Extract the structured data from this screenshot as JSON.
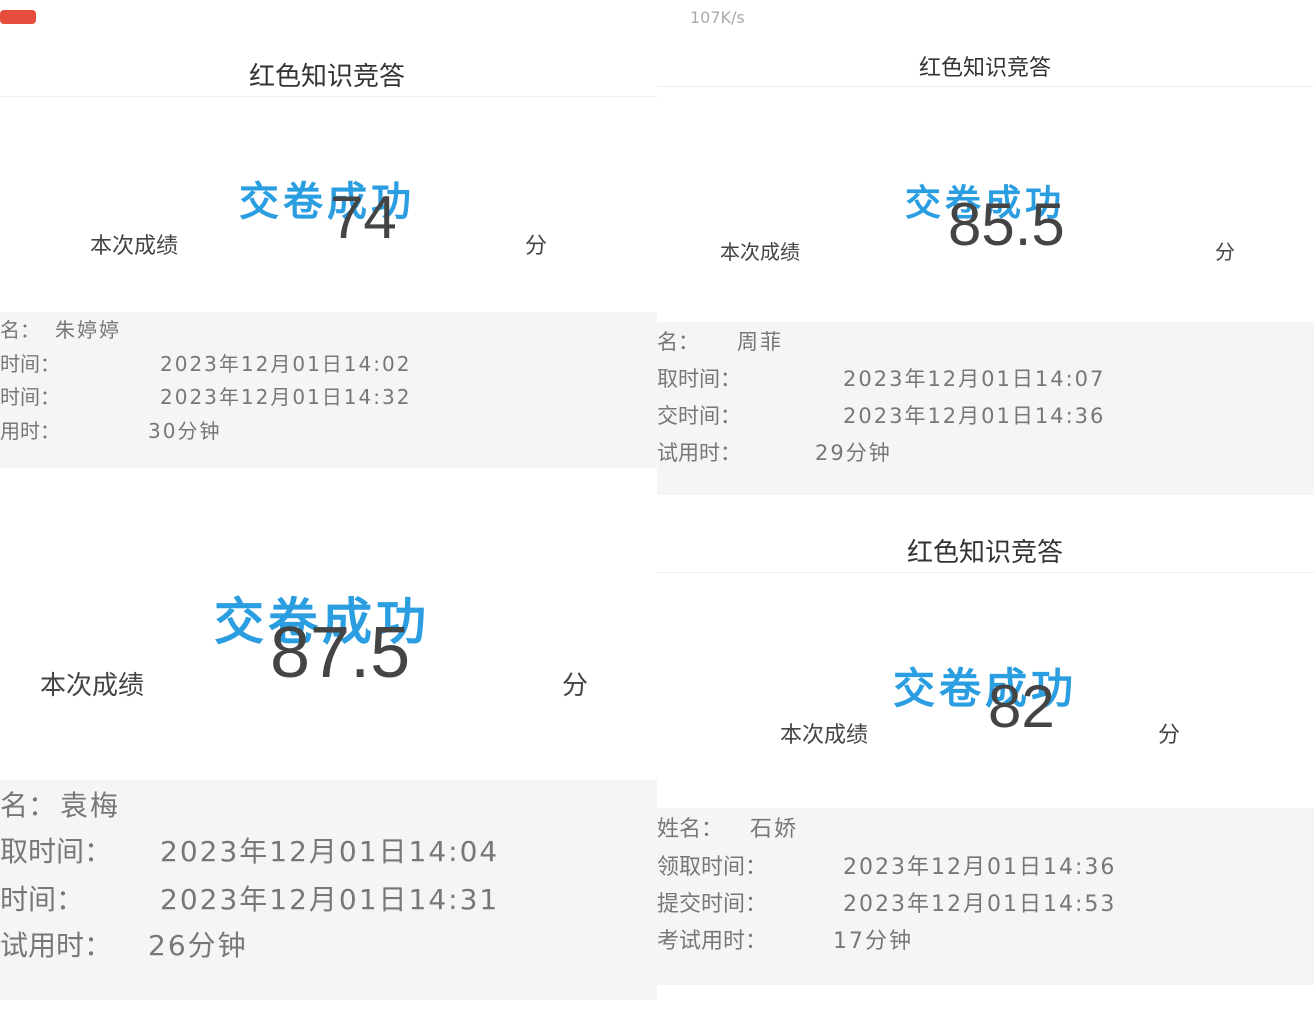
{
  "status_bar": {
    "speed": "107K/s"
  },
  "panels": [
    {
      "title": "红色知识竞答",
      "result": "交卷成功",
      "score_label": "本次成绩",
      "score": 74,
      "unit": "分",
      "info": [
        {
          "label": "名：",
          "value": "朱婷婷"
        },
        {
          "label": "时间：",
          "value": "2023年12月01日14:02"
        },
        {
          "label": "时间：",
          "value": "2023年12月01日14:32"
        },
        {
          "label": "用时：",
          "value": "30分钟"
        }
      ]
    },
    {
      "result": "交卷成功",
      "score_label": "本次成绩",
      "score": 87.5,
      "unit": "分",
      "info": [
        {
          "label": "名：",
          "value": "袁梅"
        },
        {
          "label": "取时间：",
          "value": "2023年12月01日14:04"
        },
        {
          "label": "时间：",
          "value": "2023年12月01日14:31"
        },
        {
          "label": "试用时：",
          "value": "26分钟"
        }
      ]
    },
    {
      "title": "红色知识竞答",
      "result": "交卷成功",
      "score_label": "本次成绩",
      "score": 85.5,
      "unit": "分",
      "info": [
        {
          "label": "名：",
          "value": "周菲"
        },
        {
          "label": "取时间：",
          "value": "2023年12月01日14:07"
        },
        {
          "label": "交时间：",
          "value": "2023年12月01日14:36"
        },
        {
          "label": "试用时：",
          "value": "29分钟"
        }
      ]
    },
    {
      "title": "红色知识竞答",
      "result": "交卷成功",
      "score_label": "本次成绩",
      "score": 82,
      "unit": "分",
      "info": [
        {
          "label": "姓名：",
          "value": "石娇"
        },
        {
          "label": "领取时间：",
          "value": "2023年12月01日14:36"
        },
        {
          "label": "提交时间：",
          "value": "2023年12月01日14:53"
        },
        {
          "label": "考试用时：",
          "value": "17分钟"
        }
      ]
    }
  ]
}
